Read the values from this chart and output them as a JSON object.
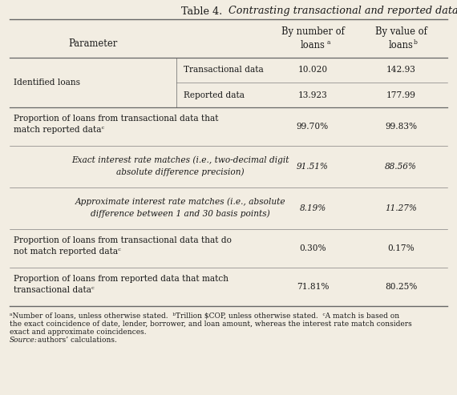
{
  "title_plain": "Table 4.  ",
  "title_italic": "Contrasting transactional and reported data",
  "header_col1": "Parameter",
  "header_v1_line1": "By number of",
  "header_v1_line2": "loans",
  "header_v1_sup": "a",
  "header_v2_line1": "By value of",
  "header_v2_line2": "loans",
  "header_v2_sup": "b",
  "id_loans_label": "Identified loans",
  "id_row1_label": "Transactional data",
  "id_row1_v1": "10.020",
  "id_row1_v2": "142.93",
  "id_row2_label": "Reported data",
  "id_row2_v1": "13.923",
  "id_row2_v2": "177.99",
  "row1_label_line1": "Proportion of loans from transactional data that",
  "row1_label_line2": "match reported dataᶜ",
  "row1_v1": "99.70%",
  "row1_v2": "99.83%",
  "row2_label_line1": "Exact interest rate matches (i.e., two-decimal digit",
  "row2_label_line2": "absolute difference precision)",
  "row2_v1": "91.51%",
  "row2_v2": "88.56%",
  "row3_label_line1": "Approximate interest rate matches (i.e., absolute",
  "row3_label_line2": "difference between 1 and 30 basis points)",
  "row3_v1": "8.19%",
  "row3_v2": "11.27%",
  "row4_label_line1": "Proportion of loans from transactional data that do",
  "row4_label_line2": "not match reported dataᶜ",
  "row4_v1": "0.30%",
  "row4_v2": "0.17%",
  "row5_label_line1": "Proportion of loans from reported data that match",
  "row5_label_line2": "transactional dataᶜ",
  "row5_v1": "71.81%",
  "row5_v2": "80.25%",
  "footnote_line1": "ᵃNumber of loans, unless otherwise stated.  ᵇTrillion $COP, unless otherwise stated.  ᶜA match is based on",
  "footnote_line2": "the exact coincidence of date, lender, borrower, and loan amount, whereas the interest rate match considers",
  "footnote_line3": "exact and approximate coincidences.",
  "footnote_line4": "Source: authors’ calculations.",
  "bg_color": "#f2ede2",
  "text_color": "#1a1a1a",
  "line_color": "#666666"
}
